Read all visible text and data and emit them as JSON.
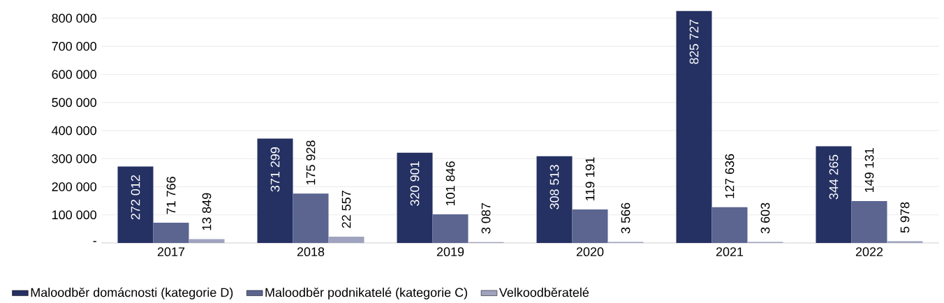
{
  "chart_data": {
    "type": "bar",
    "categories": [
      "2017",
      "2018",
      "2019",
      "2020",
      "2021",
      "2022"
    ],
    "series": [
      {
        "name": "Maloodběr domácnosti (kategorie D)",
        "color": "#253162",
        "values": [
          272012,
          371299,
          320901,
          308513,
          825727,
          344265
        ],
        "value_labels": [
          "272 012",
          "371 299",
          "320 901",
          "308 513",
          "825 727",
          "344 265"
        ]
      },
      {
        "name": "Maloodběr podnikatelé (kategorie C)",
        "color": "#5b6590",
        "values": [
          71766,
          175928,
          101846,
          119191,
          127636,
          149131
        ],
        "value_labels": [
          "71 766",
          "175 928",
          "101 846",
          "119 191",
          "127 636",
          "149 131"
        ]
      },
      {
        "name": "Velkoodběratelé",
        "color": "#9fa3bf",
        "values": [
          13849,
          22557,
          3087,
          3566,
          3603,
          5978
        ],
        "value_labels": [
          "13 849",
          "22 557",
          "3 087",
          "3 566",
          "3 603",
          "5 978"
        ]
      }
    ],
    "ylim": [
      0,
      830000
    ],
    "yticks": [
      {
        "value": 0,
        "label": "-"
      },
      {
        "value": 100000,
        "label": "100 000"
      },
      {
        "value": 200000,
        "label": "200 000"
      },
      {
        "value": 300000,
        "label": "300 000"
      },
      {
        "value": 400000,
        "label": "400 000"
      },
      {
        "value": 500000,
        "label": "500 000"
      },
      {
        "value": 600000,
        "label": "600 000"
      },
      {
        "value": 700000,
        "label": "700 000"
      },
      {
        "value": 800000,
        "label": "800 000"
      }
    ],
    "grid": "y",
    "legend": "bottom left"
  }
}
